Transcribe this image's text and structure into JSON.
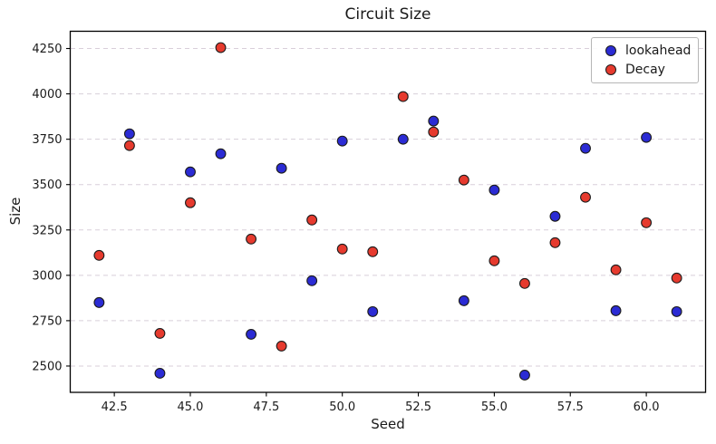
{
  "chart_data": {
    "type": "scatter",
    "title": "Circuit Size",
    "xlabel": "Seed",
    "ylabel": "Size",
    "xlim": [
      41.05,
      61.95
    ],
    "ylim": [
      2355,
      4345
    ],
    "xtick_labels": [
      "42.5",
      "45.0",
      "47.5",
      "50.0",
      "52.5",
      "55.0",
      "57.5",
      "60.0"
    ],
    "ytick_labels": [
      "2500",
      "2750",
      "3000",
      "3250",
      "3500",
      "3750",
      "4000",
      "4250"
    ],
    "grid": "horizontal, dashed",
    "grid_color": "#d8cfda",
    "spine_color": "#000000",
    "marker_edge_color": "#1c1c1c",
    "legend_position": "upper right",
    "legend_entries": [
      "lookahead",
      "Decay"
    ],
    "series": [
      {
        "name": "lookahead",
        "color": "#2b2bd4",
        "x": [
          42,
          43,
          44,
          45,
          46,
          47,
          48,
          49,
          50,
          51,
          52,
          53,
          54,
          55,
          56,
          57,
          58,
          59,
          60,
          61
        ],
        "y": [
          2850,
          3780,
          2460,
          3570,
          3670,
          2675,
          3590,
          2970,
          3740,
          2800,
          3750,
          3850,
          2860,
          3470,
          2450,
          3325,
          3700,
          2805,
          3760,
          2800
        ]
      },
      {
        "name": "Decay",
        "color": "#e63a2e",
        "x": [
          42,
          43,
          44,
          45,
          46,
          47,
          48,
          49,
          50,
          51,
          52,
          53,
          54,
          55,
          56,
          57,
          58,
          59,
          60,
          61
        ],
        "y": [
          3110,
          3715,
          2680,
          3400,
          4255,
          3200,
          2610,
          3305,
          3145,
          3130,
          3985,
          3790,
          3525,
          3080,
          2955,
          3180,
          3430,
          3030,
          3290,
          2985
        ]
      }
    ]
  }
}
